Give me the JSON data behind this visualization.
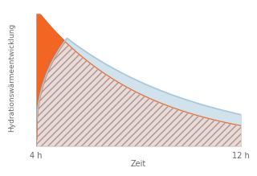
{
  "bg_color": "#ffffff",
  "ylabel": "Hydrationswärmeentwicklung",
  "xlabel": "Zeit",
  "x_tick_labels": [
    "4 h",
    "12 h"
  ],
  "orange_color": "#f26522",
  "hatched_color": "#c9b0a8",
  "hatch_edge_color": "#b09090",
  "light_blue_color": "#c8dde8",
  "light_blue_line_color": "#a8c8dc",
  "axis_color": "#aaaaaa",
  "text_color": "#666666",
  "font_size": 7
}
